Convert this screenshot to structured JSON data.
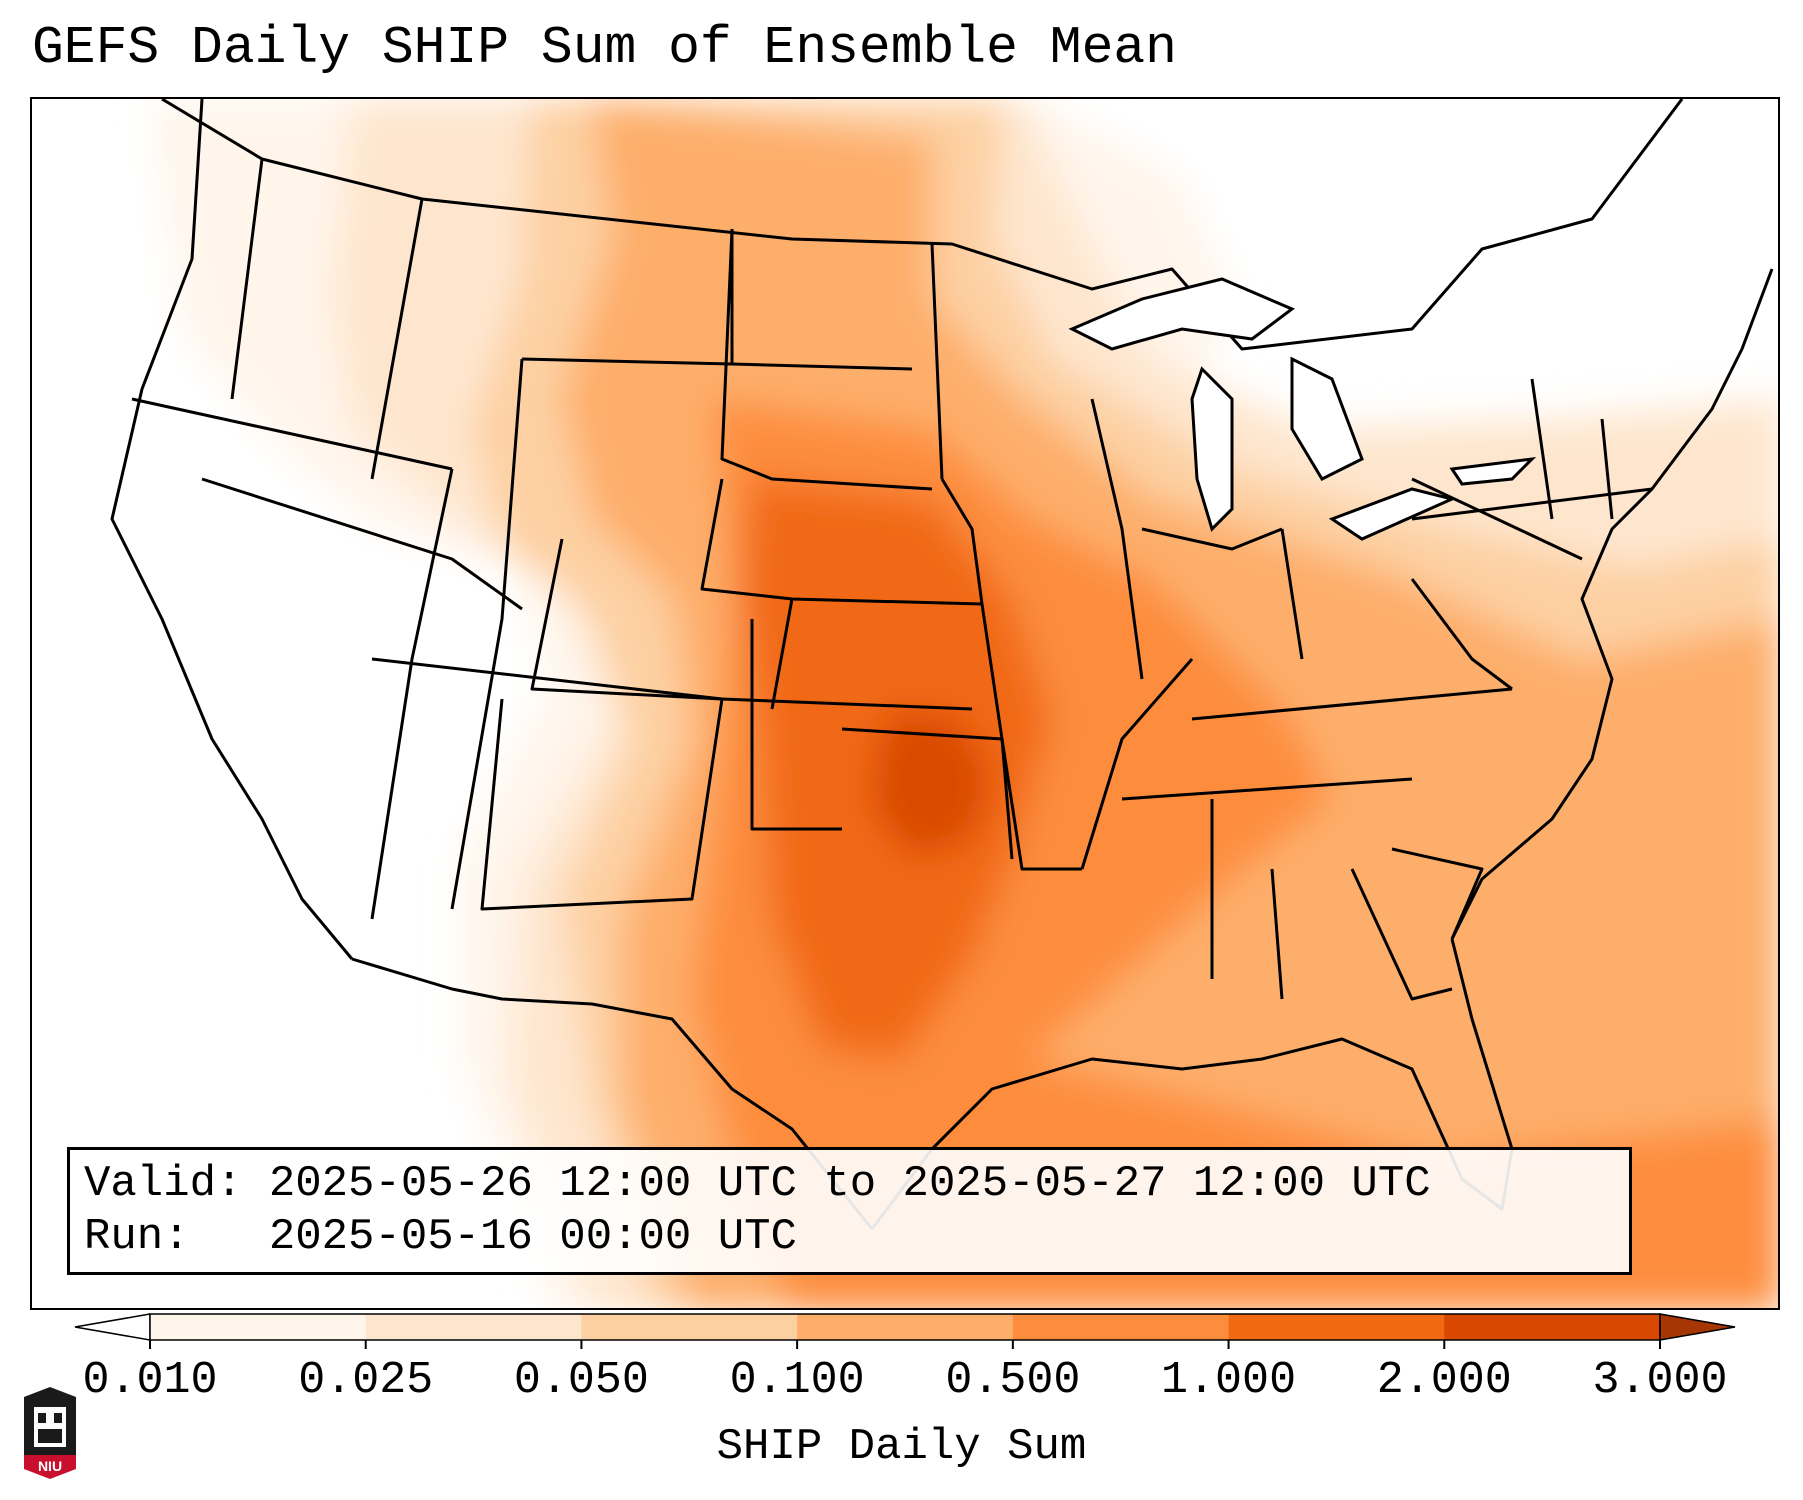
{
  "title": "GEFS Daily SHIP Sum of Ensemble Mean",
  "info": {
    "valid_label": "Valid:",
    "valid_value": "2025-05-26 12:00 UTC to 2025-05-27 12:00 UTC",
    "run_label": "Run:",
    "run_value": "2025-05-16 00:00 UTC"
  },
  "colorbar": {
    "label": "SHIP Daily Sum",
    "ticks": [
      "0.010",
      "0.025",
      "0.050",
      "0.100",
      "0.500",
      "1.000",
      "2.000",
      "3.000"
    ],
    "colors": [
      "#fff5eb",
      "#fee6ce",
      "#fdd0a2",
      "#fdae6b",
      "#fd8d3c",
      "#f16913",
      "#d94801"
    ],
    "extend_low_color": "#ffffff",
    "extend_high_color": "#a63603"
  },
  "map": {
    "region": "CONUS",
    "field": "SHIP Daily Sum",
    "max_area": "Oklahoma"
  },
  "logo": {
    "text": "NIU",
    "icon": "niu-logo-icon"
  }
}
